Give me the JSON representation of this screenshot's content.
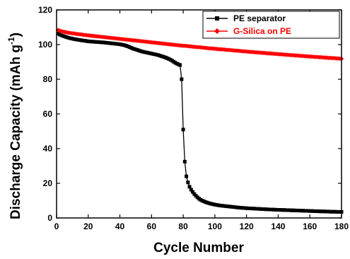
{
  "chart_data": {
    "type": "line",
    "xlabel": "Cycle Number",
    "ylabel": "Discharge Capacity (mAh g",
    "ylabel_sup": "-1",
    "ylabel_close": ")",
    "xlim": [
      0,
      180
    ],
    "ylim": [
      0,
      120
    ],
    "xticks": [
      0,
      20,
      40,
      60,
      80,
      100,
      120,
      140,
      160,
      180
    ],
    "yticks": [
      0,
      20,
      40,
      60,
      80,
      100,
      120
    ],
    "grid": false,
    "legend_position": "top-right",
    "series": [
      {
        "name": "PE separator",
        "color": "#000000",
        "marker": "square",
        "x": [
          1,
          2,
          3,
          4,
          5,
          6,
          7,
          8,
          9,
          10,
          11,
          12,
          13,
          14,
          15,
          16,
          17,
          18,
          19,
          20,
          21,
          22,
          23,
          24,
          25,
          26,
          27,
          28,
          29,
          30,
          31,
          32,
          33,
          34,
          35,
          36,
          37,
          38,
          39,
          40,
          41,
          42,
          43,
          44,
          45,
          46,
          47,
          48,
          49,
          50,
          51,
          52,
          53,
          54,
          55,
          56,
          57,
          58,
          59,
          60,
          61,
          62,
          63,
          64,
          65,
          66,
          67,
          68,
          69,
          70,
          71,
          72,
          73,
          74,
          75,
          76,
          77,
          78,
          79,
          80,
          81,
          82,
          83,
          84,
          85,
          86,
          87,
          88,
          89,
          90,
          91,
          92,
          93,
          94,
          95,
          96,
          97,
          98,
          99,
          100,
          101,
          102,
          103,
          104,
          105,
          106,
          107,
          108,
          109,
          110,
          111,
          112,
          113,
          114,
          115,
          116,
          117,
          118,
          119,
          120,
          121,
          122,
          123,
          124,
          125,
          126,
          127,
          128,
          129,
          130,
          131,
          132,
          133,
          134,
          135,
          136,
          137,
          138,
          139,
          140,
          141,
          142,
          143,
          144,
          145,
          146,
          147,
          148,
          149,
          150,
          151,
          152,
          153,
          154,
          155,
          156,
          157,
          158,
          159,
          160,
          161,
          162,
          163,
          164,
          165,
          166,
          167,
          168,
          169,
          170,
          171,
          172,
          173,
          174,
          175,
          176,
          177,
          178,
          179,
          180
        ],
        "y": [
          106.3,
          105.8,
          105.4,
          105.0,
          104.7,
          104.4,
          104.1,
          103.8,
          103.6,
          103.4,
          103.2,
          103.0,
          102.9,
          102.7,
          102.6,
          102.4,
          102.3,
          102.2,
          102.0,
          101.9,
          101.8,
          101.7,
          101.7,
          101.6,
          101.5,
          101.5,
          101.4,
          101.3,
          101.3,
          101.2,
          101.1,
          101.0,
          100.9,
          100.8,
          100.7,
          100.6,
          100.5,
          100.4,
          100.3,
          100.2,
          100.0,
          99.8,
          99.6,
          99.3,
          99.0,
          98.6,
          98.2,
          97.8,
          97.5,
          97.2,
          96.9,
          96.6,
          96.3,
          96.0,
          95.8,
          95.6,
          95.4,
          95.2,
          95.0,
          94.8,
          94.6,
          94.4,
          94.2,
          94.0,
          93.7,
          93.4,
          93.1,
          92.8,
          92.5,
          92.1,
          91.7,
          91.2,
          90.7,
          90.1,
          89.5,
          89.0,
          88.6,
          88.2,
          80.0,
          51.0,
          32.5,
          24.0,
          20.5,
          18.0,
          16.3,
          15.0,
          13.8,
          12.8,
          11.9,
          11.1,
          10.5,
          10.0,
          9.6,
          9.2,
          8.9,
          8.6,
          8.3,
          8.1,
          7.9,
          7.7,
          7.5,
          7.4,
          7.2,
          7.1,
          7.0,
          6.9,
          6.8,
          6.7,
          6.6,
          6.5,
          6.4,
          6.3,
          6.2,
          6.1,
          6.0,
          5.9,
          5.8,
          5.8,
          5.7,
          5.6,
          5.6,
          5.5,
          5.5,
          5.4,
          5.4,
          5.3,
          5.3,
          5.2,
          5.2,
          5.1,
          5.1,
          5.0,
          5.0,
          4.9,
          4.9,
          4.9,
          4.8,
          4.8,
          4.7,
          4.7,
          4.7,
          4.6,
          4.6,
          4.6,
          4.5,
          4.5,
          4.5,
          4.4,
          4.4,
          4.4,
          4.3,
          4.3,
          4.3,
          4.2,
          4.2,
          4.2,
          4.1,
          4.1,
          4.1,
          4.0,
          4.0,
          4.0,
          3.9,
          3.9,
          3.9,
          3.8,
          3.8,
          3.8,
          3.8,
          3.7,
          3.7,
          3.7,
          3.6,
          3.6,
          3.6,
          3.6,
          3.5,
          3.5,
          3.5,
          3.5
        ]
      },
      {
        "name": "G-Silica on PE",
        "color": "#ff0000",
        "marker": "diamond",
        "x": [
          1,
          2,
          3,
          4,
          5,
          6,
          7,
          8,
          9,
          10,
          11,
          12,
          13,
          14,
          15,
          16,
          17,
          18,
          19,
          20,
          21,
          22,
          23,
          24,
          25,
          26,
          27,
          28,
          29,
          30,
          31,
          32,
          33,
          34,
          35,
          36,
          37,
          38,
          39,
          40,
          41,
          42,
          43,
          44,
          45,
          46,
          47,
          48,
          49,
          50,
          51,
          52,
          53,
          54,
          55,
          56,
          57,
          58,
          59,
          60,
          61,
          62,
          63,
          64,
          65,
          66,
          67,
          68,
          69,
          70,
          71,
          72,
          73,
          74,
          75,
          76,
          77,
          78,
          79,
          80,
          81,
          82,
          83,
          84,
          85,
          86,
          87,
          88,
          89,
          90,
          91,
          92,
          93,
          94,
          95,
          96,
          97,
          98,
          99,
          100,
          101,
          102,
          103,
          104,
          105,
          106,
          107,
          108,
          109,
          110,
          111,
          112,
          113,
          114,
          115,
          116,
          117,
          118,
          119,
          120,
          121,
          122,
          123,
          124,
          125,
          126,
          127,
          128,
          129,
          130,
          131,
          132,
          133,
          134,
          135,
          136,
          137,
          138,
          139,
          140,
          141,
          142,
          143,
          144,
          145,
          146,
          147,
          148,
          149,
          150,
          151,
          152,
          153,
          154,
          155,
          156,
          157,
          158,
          159,
          160,
          161,
          162,
          163,
          164,
          165,
          166,
          167,
          168,
          169,
          170,
          171,
          172,
          173,
          174,
          175,
          176,
          177,
          178,
          179,
          180
        ],
        "y": [
          108.4,
          108.0,
          107.7,
          107.5,
          107.3,
          107.1,
          106.9,
          106.8,
          106.6,
          106.5,
          106.4,
          106.2,
          106.1,
          106.0,
          105.9,
          105.8,
          105.6,
          105.5,
          105.4,
          105.3,
          105.2,
          105.1,
          105.0,
          104.9,
          104.8,
          104.7,
          104.6,
          104.5,
          104.4,
          104.3,
          104.2,
          104.1,
          104.0,
          103.9,
          103.8,
          103.7,
          103.6,
          103.5,
          103.4,
          103.3,
          103.2,
          103.1,
          103.0,
          102.9,
          102.8,
          102.7,
          102.6,
          102.5,
          102.4,
          102.3,
          102.2,
          102.1,
          102.0,
          101.9,
          101.8,
          101.7,
          101.6,
          101.5,
          101.4,
          101.3,
          101.2,
          101.1,
          101.0,
          100.9,
          100.8,
          100.7,
          100.6,
          100.5,
          100.4,
          100.3,
          100.2,
          100.1,
          100.0,
          99.9,
          99.8,
          99.7,
          99.6,
          99.5,
          99.4,
          99.3,
          99.3,
          99.2,
          99.1,
          99.0,
          98.9,
          98.8,
          98.7,
          98.6,
          98.5,
          98.5,
          98.4,
          98.3,
          98.2,
          98.1,
          98.0,
          97.9,
          97.8,
          97.8,
          97.7,
          97.6,
          97.5,
          97.4,
          97.3,
          97.3,
          97.2,
          97.1,
          97.0,
          96.9,
          96.9,
          96.8,
          96.7,
          96.6,
          96.5,
          96.5,
          96.4,
          96.3,
          96.2,
          96.1,
          96.1,
          96.0,
          95.9,
          95.8,
          95.8,
          95.7,
          95.6,
          95.5,
          95.5,
          95.4,
          95.3,
          95.2,
          95.2,
          95.1,
          95.0,
          94.9,
          94.9,
          94.8,
          94.7,
          94.6,
          94.6,
          94.5,
          94.4,
          94.4,
          94.3,
          94.2,
          94.1,
          94.1,
          94.0,
          93.9,
          93.9,
          93.8,
          93.7,
          93.7,
          93.6,
          93.5,
          93.5,
          93.4,
          93.3,
          93.3,
          93.2,
          93.1,
          93.1,
          93.0,
          92.9,
          92.9,
          92.8,
          92.7,
          92.7,
          92.6,
          92.5,
          92.5,
          92.4,
          92.3,
          92.3,
          92.2,
          92.2,
          92.1,
          92.0,
          92.0,
          91.9,
          91.8
        ]
      }
    ]
  }
}
